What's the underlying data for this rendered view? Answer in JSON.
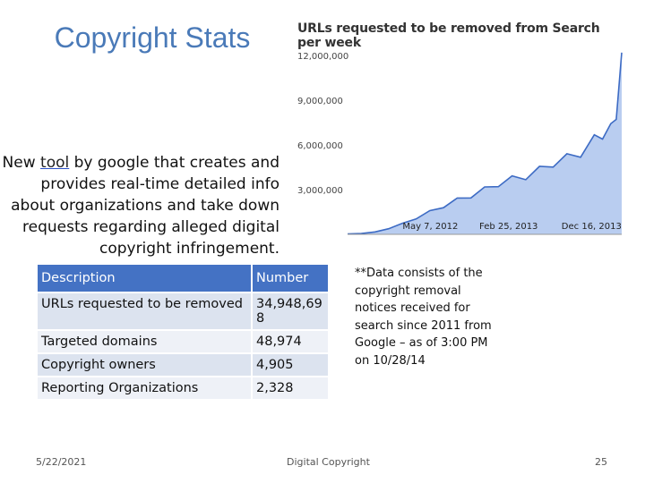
{
  "slide": {
    "title": "Copyright Stats",
    "body_text_pre": "New ",
    "body_text_link": "tool",
    "body_text_post": " by google that creates and provides real-time detailed info about organizations and take down requests regarding alleged digital copyright infringement."
  },
  "chart_data": {
    "type": "area",
    "title": "URLs requested to be removed from Search per week",
    "xlabel": "",
    "ylabel": "",
    "y_ticks": [
      "12,000,000",
      "9,000,000",
      "6,000,000",
      "3,000,000"
    ],
    "x_ticks": [
      "May 7, 2012",
      "Feb 25, 2013",
      "Dec 16, 2013"
    ],
    "ylim": [
      0,
      12000000
    ],
    "x": [
      0,
      0.05,
      0.1,
      0.15,
      0.2,
      0.25,
      0.3,
      0.35,
      0.4,
      0.45,
      0.5,
      0.55,
      0.6,
      0.65,
      0.7,
      0.75,
      0.8,
      0.85,
      0.9,
      0.93,
      0.96,
      0.98,
      1.0
    ],
    "values": [
      30000,
      60000,
      150000,
      400000,
      700000,
      1100000,
      1500000,
      1900000,
      2300000,
      2600000,
      3000000,
      3400000,
      3700000,
      3900000,
      4300000,
      4800000,
      5100000,
      5500000,
      6300000,
      6800000,
      7000000,
      8200000,
      11500000
    ],
    "fill_color": "#b9cdf0",
    "line_color": "#3d6bc4"
  },
  "table": {
    "headers": [
      "Description",
      "Number"
    ],
    "rows": [
      [
        "URLs requested to be removed",
        "34,948,698"
      ],
      [
        "Targeted domains",
        "48,974"
      ],
      [
        "Copyright owners",
        "4,905"
      ],
      [
        "Reporting Organizations",
        "2,328"
      ]
    ]
  },
  "note": "**Data consists of the copyright removal notices received for search since 2011 from Google – as of 3:00 PM on 10/28/14",
  "footer": {
    "date": "5/22/2021",
    "center": "Digital Copyright",
    "page": "25"
  },
  "colors": {
    "title": "#4a7ab8",
    "header_bg": "#4472c4"
  }
}
